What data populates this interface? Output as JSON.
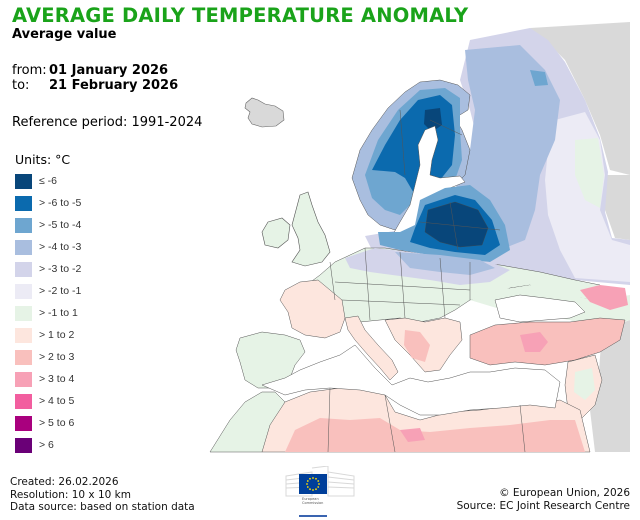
{
  "header": {
    "title": "AVERAGE DAILY TEMPERATURE ANOMALY",
    "subtitle": "Average value",
    "from_label": "from:",
    "from_value": "01 January 2026",
    "to_label": "to:",
    "to_value": "21 February 2026",
    "reference": "Reference period: 1991-2024"
  },
  "legend": {
    "units": "Units: °C",
    "items": [
      {
        "label": "≤ -6",
        "color": "#08467a"
      },
      {
        "label": "> -6 to -5",
        "color": "#0b6aae"
      },
      {
        "label": "> -5 to -4",
        "color": "#6ea6d0"
      },
      {
        "label": "> -4 to -3",
        "color": "#a9bedf"
      },
      {
        "label": "> -3 to -2",
        "color": "#d3d4ea"
      },
      {
        "label": "> -2 to -1",
        "color": "#ecebf5"
      },
      {
        "label": "> -1 to 1",
        "color": "#e6f3e6"
      },
      {
        "label": "> 1 to 2",
        "color": "#fde6de"
      },
      {
        "label": "> 2 to 3",
        "color": "#f9c0bd"
      },
      {
        "label": "> 3 to 4",
        "color": "#f7a1b6"
      },
      {
        "label": "> 4 to 5",
        "color": "#f25e9f"
      },
      {
        "label": "> 5 to 6",
        "color": "#a9007e"
      },
      {
        "label": "> 6",
        "color": "#6a0077"
      }
    ]
  },
  "map": {
    "no_data_color": "#d9d9d9",
    "sea_color": "#ffffff",
    "border_color": "#555555"
  },
  "footer": {
    "created": "Created: 26.02.2026",
    "resolution": "Resolution: 10 x 10 km",
    "data_source": "Data source: based on station data",
    "copyright": "© European Union, 2026",
    "source": "Source: EC Joint Research Centre",
    "logo_text": "European Commission"
  }
}
